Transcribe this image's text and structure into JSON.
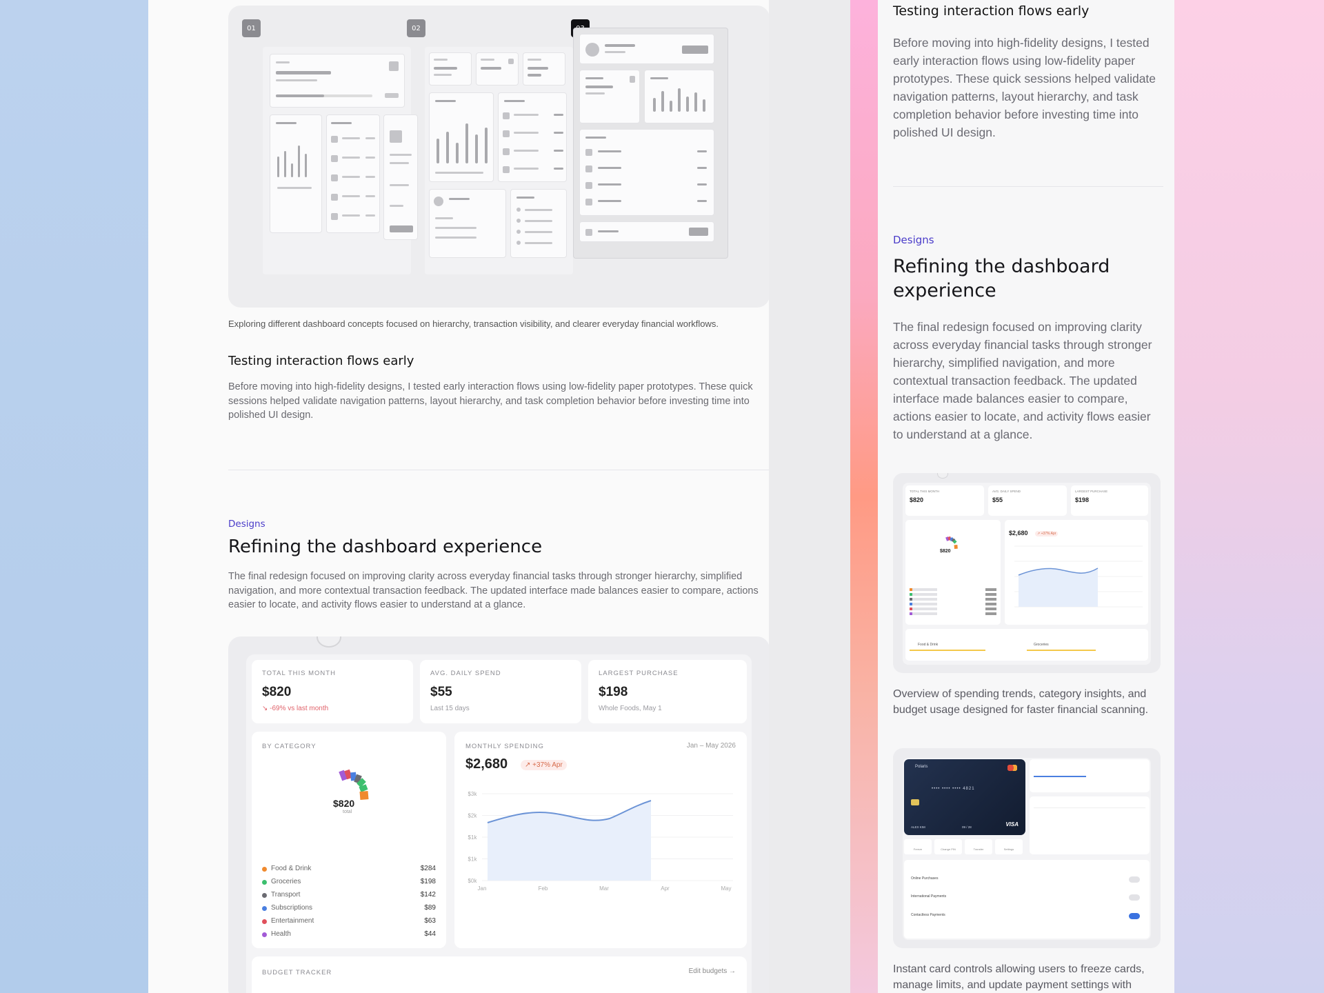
{
  "left": {
    "wireframes": {
      "badges": [
        "01",
        "02",
        "03"
      ],
      "caption": "Exploring different dashboard concepts focused on hierarchy, transaction visibility, and clearer everyday financial workflows."
    },
    "testing": {
      "title": "Testing interaction flows early",
      "body": "Before moving into high-fidelity designs, I tested early interaction flows using low-fidelity paper prototypes. These quick sessions helped validate navigation patterns, layout hierarchy, and task completion behavior before investing time into polished UI design."
    },
    "designs": {
      "eyebrow": "Designs",
      "title": "Refining the dashboard experience",
      "body": "The final redesign focused on improving clarity across everyday financial tasks through stronger hierarchy, simplified navigation, and more contextual transaction feedback. The updated interface made balances easier to compare, actions easier to locate, and activity flows easier to understand at a glance."
    },
    "dashboard": {
      "kpis": [
        {
          "label": "TOTAL THIS MONTH",
          "value": "$820",
          "sub": "↘ -69% vs last month",
          "negative": true
        },
        {
          "label": "AVG. DAILY SPEND",
          "value": "$55",
          "sub": "Last 15 days",
          "negative": false
        },
        {
          "label": "LARGEST PURCHASE",
          "value": "$198",
          "sub": "Whole Foods, May 1",
          "negative": false
        }
      ],
      "category": {
        "label": "BY CATEGORY",
        "total": "$820",
        "total_sub": "total",
        "items": [
          {
            "name": "Food & Drink",
            "value": "$284",
            "color": "#f08a2e"
          },
          {
            "name": "Groceries",
            "value": "$198",
            "color": "#3cbf6e"
          },
          {
            "name": "Transport",
            "value": "$142",
            "color": "#6b6b72"
          },
          {
            "name": "Subscriptions",
            "value": "$89",
            "color": "#4a7fe0"
          },
          {
            "name": "Entertainment",
            "value": "$63",
            "color": "#e0505c"
          },
          {
            "name": "Health",
            "value": "$44",
            "color": "#a25bd6"
          }
        ]
      },
      "monthly": {
        "label": "MONTHLY SPENDING",
        "range": "Jan – May 2026",
        "value": "$2,680",
        "delta": "↗ +37% Apr",
        "y_ticks": [
          "$3k",
          "$2k",
          "$1k",
          "$1k",
          "$0k"
        ],
        "x_ticks": [
          "Jan",
          "Feb",
          "Mar",
          "Apr",
          "May"
        ]
      },
      "budget": {
        "label": "BUDGET TRACKER",
        "edit": "Edit budgets →"
      }
    }
  },
  "right": {
    "testing": {
      "title": "Testing interaction flows early",
      "body": "Before moving into high-fidelity designs, I tested early interaction flows using low-fidelity paper prototypes. These quick sessions helped validate navigation patterns, layout hierarchy, and task completion behavior before investing time into polished UI design."
    },
    "designs": {
      "eyebrow": "Designs",
      "title": "Refining the dashboard experience",
      "body": "The final redesign focused on improving clarity across everyday financial tasks through stronger hierarchy, simplified navigation, and more contextual transaction feedback. The updated interface made balances easier to compare, actions easier to locate, and activity flows easier to understand at a glance."
    },
    "mini_dashboard": {
      "kpis": [
        {
          "label": "TOTAL THIS MONTH",
          "value": "$820"
        },
        {
          "label": "AVG. DAILY SPEND",
          "value": "$55"
        },
        {
          "label": "LARGEST PURCHASE",
          "value": "$198"
        }
      ],
      "monthly_value": "$2,680",
      "monthly_delta": "↗ +37% Apr",
      "cat_total": "$820",
      "budget_items": [
        "Food & Drink",
        "Groceries"
      ],
      "caption": "Overview of spending trends, category insights, and budget usage designed for faster financial scanning."
    },
    "card_controls": {
      "brand": "Polaris",
      "network": "VISA",
      "card_number": "•••• •••• •••• 4821",
      "holder": "ALEX KIM",
      "expires": "09 / 28",
      "actions": [
        "Freeze",
        "Change PIN",
        "Transfer",
        "Settings"
      ],
      "toggles": [
        "Online Purchases",
        "International Payments",
        "Contactless Payments"
      ],
      "caption": "Instant card controls allowing users to freeze cards, manage limits, and update payment settings with"
    }
  }
}
